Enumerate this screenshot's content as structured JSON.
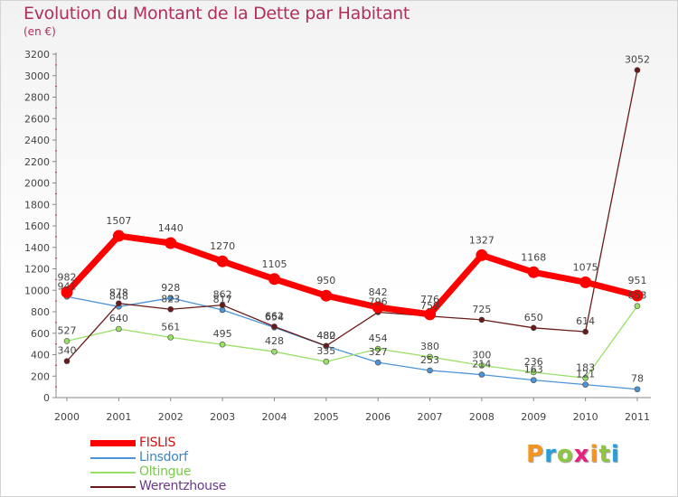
{
  "title": "Evolution du Montant de la Dette par Habitant",
  "subtitle": "(en €)",
  "brand": "Proxiti",
  "brand_colors": [
    "#f7941d",
    "#2a9fd6",
    "#8dc63f",
    "#e8207f",
    "#f7941d",
    "#8dc63f",
    "#2a9fd6"
  ],
  "chart_data": {
    "type": "line",
    "title": "Evolution du Montant de la Dette par Habitant",
    "subtitle": "(en €)",
    "x": [
      "2000",
      "2001",
      "2002",
      "2003",
      "2004",
      "2005",
      "2006",
      "2007",
      "2008",
      "2009",
      "2010",
      "2011"
    ],
    "ylim": [
      0,
      3200
    ],
    "yticks": [
      0,
      200,
      400,
      600,
      800,
      1000,
      1200,
      1400,
      1600,
      1800,
      2000,
      2200,
      2400,
      2600,
      2800,
      3000,
      3200
    ],
    "grid": false,
    "legend_position": "bottom-left",
    "series": [
      {
        "name": "FISLIS",
        "color": "#ff0000",
        "values": [
          982,
          1507,
          1440,
          1270,
          1105,
          950,
          842,
          776,
          1327,
          1168,
          1075,
          951
        ],
        "labels": [
          "982",
          "1507",
          "1440",
          "1270",
          "1105",
          "950",
          "842",
          "776",
          "1327",
          "1168",
          "1075",
          "951"
        ]
      },
      {
        "name": "Linsdorf",
        "color": "#4d94d6",
        "values": [
          941,
          848,
          928,
          817,
          654,
          480,
          327,
          253,
          214,
          163,
          121,
          78
        ],
        "labels": [
          "941",
          "848",
          "928",
          "817",
          "654",
          "480",
          "327",
          "253",
          "214",
          "163",
          "121",
          "78"
        ]
      },
      {
        "name": "Oltingue",
        "color": "#99e066",
        "values": [
          527,
          640,
          561,
          495,
          428,
          335,
          454,
          380,
          300,
          236,
          183,
          853
        ],
        "labels": [
          "527",
          "640",
          "561",
          "495",
          "428",
          "335",
          "454",
          "380",
          "300",
          "236",
          "183",
          "853"
        ]
      },
      {
        "name": "Werentzhouse",
        "color": "#6b1a1a",
        "values": [
          340,
          878,
          823,
          862,
          662,
          482,
          796,
          759,
          725,
          650,
          614,
          3052
        ],
        "labels": [
          "340",
          "878",
          "823",
          "862",
          "662",
          "482",
          "796",
          "759",
          "725",
          "650",
          "614",
          "3052"
        ]
      }
    ]
  }
}
